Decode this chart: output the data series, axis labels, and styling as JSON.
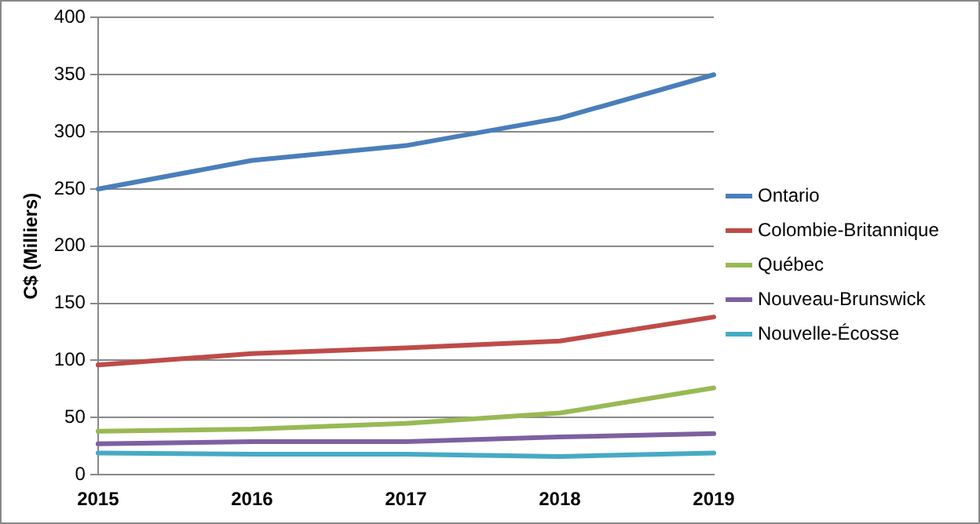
{
  "chart_data": {
    "type": "line",
    "ylabel": "C$ (Milliers)",
    "categories": [
      "2015",
      "2016",
      "2017",
      "2018",
      "2019"
    ],
    "series": [
      {
        "name": "Ontario",
        "color": "#4a7ebb",
        "values": [
          250,
          275,
          288,
          312,
          350
        ]
      },
      {
        "name": "Colombie-Britannique",
        "color": "#be4b48",
        "values": [
          96,
          106,
          111,
          117,
          138
        ]
      },
      {
        "name": "Québec",
        "color": "#98b954",
        "values": [
          38,
          40,
          45,
          54,
          76
        ]
      },
      {
        "name": "Nouveau-Brunswick",
        "color": "#7d60a0",
        "values": [
          27,
          29,
          29,
          33,
          36
        ]
      },
      {
        "name": "Nouvelle-Écosse",
        "color": "#46aac5",
        "values": [
          19,
          18,
          18,
          16,
          19
        ]
      }
    ],
    "ylim": [
      0,
      400
    ],
    "yticks": [
      0,
      50,
      100,
      150,
      200,
      250,
      300,
      350,
      400
    ],
    "grid": "y",
    "legend": "right",
    "marker": "none",
    "line_style": "solid"
  }
}
